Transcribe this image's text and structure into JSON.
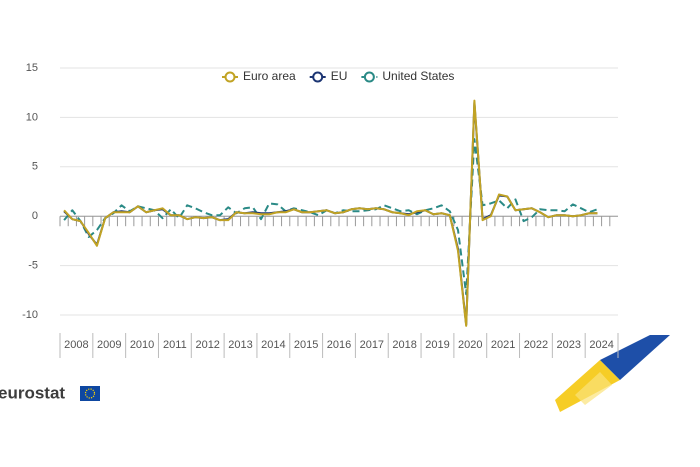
{
  "chart_data": {
    "type": "line",
    "categories": [
      "2008",
      null,
      null,
      null,
      "2009",
      null,
      null,
      null,
      "2010",
      null,
      null,
      null,
      "2011",
      null,
      null,
      null,
      "2012",
      null,
      null,
      null,
      "2013",
      null,
      null,
      null,
      "2014",
      null,
      null,
      null,
      "2015",
      null,
      null,
      null,
      "2016",
      null,
      null,
      null,
      "2017",
      null,
      null,
      null,
      "2018",
      null,
      null,
      null,
      "2019",
      null,
      null,
      null,
      "2020",
      null,
      null,
      null,
      "2021",
      null,
      null,
      null,
      "2022",
      null,
      null,
      null,
      "2023",
      null,
      null,
      null,
      "2024",
      null,
      null,
      null
    ],
    "series": [
      {
        "name": "Euro area",
        "color": "#c1a324",
        "dash": false,
        "values": [
          0.6,
          -0.3,
          -0.5,
          -1.7,
          -3.0,
          -0.2,
          0.4,
          0.4,
          0.4,
          1.0,
          0.4,
          0.6,
          0.8,
          0.1,
          0.1,
          -0.3,
          -0.1,
          -0.2,
          -0.1,
          -0.4,
          -0.4,
          0.4,
          0.3,
          0.3,
          0.2,
          0.2,
          0.4,
          0.4,
          0.7,
          0.4,
          0.4,
          0.5,
          0.6,
          0.3,
          0.4,
          0.7,
          0.8,
          0.7,
          0.8,
          0.7,
          0.4,
          0.3,
          0.1,
          0.5,
          0.6,
          0.2,
          0.3,
          0.1,
          -3.5,
          -11.1,
          11.7,
          -0.4,
          0.0,
          2.2,
          2.0,
          0.6,
          0.7,
          0.8,
          0.4,
          -0.1,
          0.1,
          0.1,
          0.0,
          0.1,
          0.3,
          0.3,
          null,
          null
        ]
      },
      {
        "name": "EU",
        "color": "#1c3573",
        "dash": false,
        "values": [
          0.5,
          -0.3,
          -0.5,
          -1.8,
          -2.9,
          -0.2,
          0.4,
          0.5,
          0.4,
          1.0,
          0.4,
          0.6,
          0.7,
          0.1,
          0.1,
          -0.3,
          -0.1,
          -0.2,
          -0.1,
          -0.4,
          -0.3,
          0.4,
          0.3,
          0.4,
          0.3,
          0.3,
          0.4,
          0.5,
          0.7,
          0.4,
          0.4,
          0.5,
          0.6,
          0.3,
          0.4,
          0.7,
          0.8,
          0.7,
          0.8,
          0.7,
          0.4,
          0.3,
          0.2,
          0.4,
          0.6,
          0.2,
          0.3,
          0.1,
          -3.3,
          -11.0,
          11.5,
          -0.3,
          0.1,
          2.1,
          2.0,
          0.6,
          0.7,
          0.8,
          0.4,
          -0.1,
          0.1,
          0.1,
          0.0,
          0.1,
          0.3,
          0.3,
          null,
          null
        ]
      },
      {
        "name": "United States",
        "color": "#2a8a86",
        "dash": true,
        "values": [
          -0.4,
          0.6,
          -0.5,
          -2.1,
          -1.4,
          -0.2,
          0.3,
          1.1,
          0.5,
          1.0,
          0.8,
          0.6,
          -0.2,
          0.7,
          -0.2,
          1.1,
          0.8,
          0.4,
          0.1,
          0.1,
          0.9,
          0.3,
          0.8,
          0.9,
          -0.3,
          1.3,
          1.2,
          0.5,
          0.8,
          0.6,
          0.4,
          0.1,
          0.6,
          0.3,
          0.6,
          0.5,
          0.5,
          0.6,
          0.7,
          1.1,
          0.8,
          0.5,
          0.6,
          0.2,
          0.6,
          0.8,
          1.1,
          0.5,
          -1.4,
          -7.9,
          7.8,
          1.1,
          1.3,
          1.6,
          0.8,
          1.7,
          -0.5,
          -0.1,
          0.7,
          0.6,
          0.6,
          0.5,
          1.2,
          0.8,
          0.4,
          0.7,
          null,
          null
        ]
      }
    ],
    "ylim": [
      -10,
      15
    ],
    "yticks": [
      -10,
      -5,
      0,
      5,
      10,
      15
    ],
    "grid": true,
    "legend": "top"
  },
  "logo": "eurostat"
}
